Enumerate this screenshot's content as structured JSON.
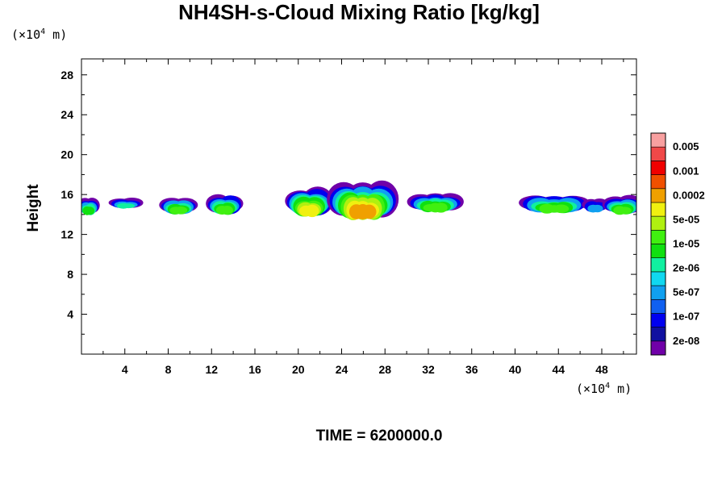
{
  "title": "NH4SH-s-Cloud Mixing Ratio [kg/kg]",
  "y_unit": {
    "prefix": "(×10",
    "exp": "4",
    "suffix": " m)"
  },
  "x_unit": {
    "prefix": "(×10",
    "exp": "4",
    "suffix": " m)"
  },
  "time_label": "TIME = 6200000.0",
  "colors": {
    "levels": [
      "#7000a8",
      "#1010a0",
      "#0000f0",
      "#1060f0",
      "#10a0f0",
      "#10d8f0",
      "#10f0a0",
      "#10e010",
      "#40f010",
      "#b0f010",
      "#f0f010",
      "#f0a000",
      "#f05000",
      "#f00000",
      "#f04848",
      "#f8a0a0"
    ]
  },
  "chart_data": {
    "type": "heatmap",
    "title": "NH4SH-s-Cloud Mixing Ratio [kg/kg]",
    "xlabel": "",
    "ylabel": "Height",
    "x_unit": "×10^4 m",
    "y_unit": "×10^4 m",
    "xlim": [
      0,
      51.2
    ],
    "ylim": [
      0,
      29.6
    ],
    "x_ticks": [
      4,
      8,
      12,
      16,
      20,
      24,
      28,
      32,
      36,
      40,
      44,
      48
    ],
    "y_ticks": [
      4,
      8,
      12,
      16,
      20,
      24,
      28
    ],
    "colorbar_labels": [
      "0.005",
      "0.001",
      "0.0002",
      "5e-05",
      "1e-05",
      "2e-06",
      "5e-07",
      "1e-07",
      "2e-08"
    ],
    "clouds": [
      {
        "x": [
          0,
          1.3
        ],
        "y": [
          13.8,
          15.6
        ],
        "max_level": 7
      },
      {
        "x": [
          3.0,
          5.2
        ],
        "y": [
          14.5,
          15.6
        ],
        "max_level": 6
      },
      {
        "x": [
          7.7,
          10.2
        ],
        "y": [
          13.9,
          15.6
        ],
        "max_level": 8
      },
      {
        "x": [
          12.0,
          14.4
        ],
        "y": [
          13.8,
          15.9
        ],
        "max_level": 8
      },
      {
        "x": [
          19.4,
          22.6
        ],
        "y": [
          13.5,
          16.5
        ],
        "max_level": 10
      },
      {
        "x": [
          23.3,
          28.6
        ],
        "y": [
          13.2,
          17.0
        ],
        "max_level": 11
      },
      {
        "x": [
          30.6,
          34.7
        ],
        "y": [
          14.1,
          16.0
        ],
        "max_level": 8
      },
      {
        "x": [
          41.0,
          46.2
        ],
        "y": [
          14.0,
          15.9
        ],
        "max_level": 8
      },
      {
        "x": [
          46.6,
          48.2
        ],
        "y": [
          14.0,
          15.6
        ],
        "max_level": 5
      },
      {
        "x": [
          48.6,
          51.2
        ],
        "y": [
          13.8,
          15.8
        ],
        "max_level": 8
      }
    ],
    "grid": false,
    "legend": "right colorbar"
  }
}
